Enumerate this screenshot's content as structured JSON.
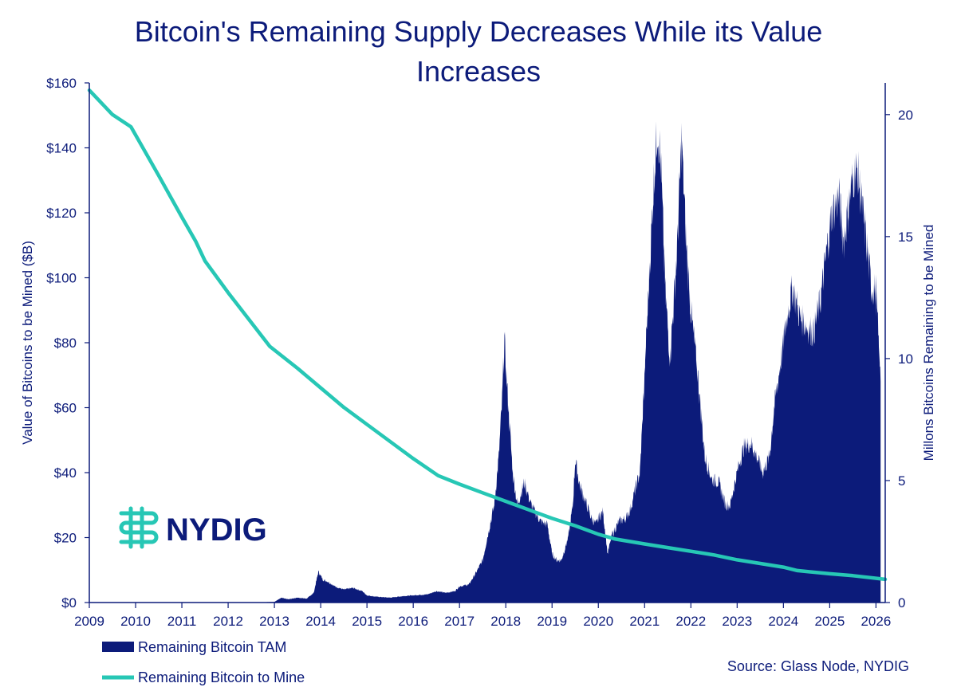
{
  "colors": {
    "navy": "#0c1b7a",
    "teal": "#27c7b5",
    "background": "#ffffff"
  },
  "logo": {
    "text": "NYDIG",
    "icon": "nydig-logo-icon"
  },
  "source": "Source: Glass Node, NYDIG",
  "chart_data": {
    "type": "area",
    "title_line1": "Bitcoin's Remaining Supply Decreases While its Value",
    "title_line2": "Increases",
    "ylabel_left": "Value of Bitcoins to be Mined ($B)",
    "ylabel_right": "Millons Bitcoins Remaining to be Mined",
    "xlim": [
      2009,
      2026.2
    ],
    "ylim_left": [
      0,
      160
    ],
    "ylim_right": [
      0,
      21.3
    ],
    "x_ticks": [
      "2009",
      "2010",
      "2011",
      "2012",
      "2013",
      "2014",
      "2015",
      "2016",
      "2017",
      "2018",
      "2019",
      "2020",
      "2021",
      "2022",
      "2023",
      "2024",
      "2025",
      "2026"
    ],
    "y_ticks_left": [
      "$0",
      "$20",
      "$40",
      "$60",
      "$80",
      "$100",
      "$120",
      "$140",
      "$160"
    ],
    "y_ticks_left_values": [
      0,
      20,
      40,
      60,
      80,
      100,
      120,
      140,
      160
    ],
    "y_ticks_right": [
      "0",
      "5",
      "10",
      "15",
      "20"
    ],
    "y_ticks_right_values": [
      0,
      5,
      10,
      15,
      20
    ],
    "grid": false,
    "legend_position": "bottom-left",
    "series": [
      {
        "name": "Remaining Bitcoin TAM",
        "axis": "left",
        "style": "area",
        "color": "#0c1b7a",
        "points": [
          [
            2009,
            0
          ],
          [
            2010.5,
            0
          ],
          [
            2012.5,
            0
          ],
          [
            2013,
            0.2
          ],
          [
            2013.15,
            1.5
          ],
          [
            2013.3,
            1
          ],
          [
            2013.5,
            1.5
          ],
          [
            2013.7,
            1.2
          ],
          [
            2013.85,
            3
          ],
          [
            2013.95,
            9.5
          ],
          [
            2014.05,
            7
          ],
          [
            2014.15,
            6.5
          ],
          [
            2014.3,
            5
          ],
          [
            2014.5,
            4
          ],
          [
            2014.7,
            4.5
          ],
          [
            2014.9,
            3.5
          ],
          [
            2015.0,
            2.2
          ],
          [
            2015.2,
            1.8
          ],
          [
            2015.5,
            1.5
          ],
          [
            2015.8,
            2
          ],
          [
            2016.0,
            2.2
          ],
          [
            2016.3,
            2.5
          ],
          [
            2016.5,
            3.5
          ],
          [
            2016.7,
            3
          ],
          [
            2016.9,
            3.5
          ],
          [
            2017.0,
            5
          ],
          [
            2017.2,
            5.5
          ],
          [
            2017.35,
            9
          ],
          [
            2017.5,
            13
          ],
          [
            2017.6,
            20
          ],
          [
            2017.75,
            30
          ],
          [
            2017.85,
            45
          ],
          [
            2017.92,
            62
          ],
          [
            2017.97,
            81
          ],
          [
            2018.02,
            68
          ],
          [
            2018.08,
            55
          ],
          [
            2018.15,
            40
          ],
          [
            2018.25,
            30
          ],
          [
            2018.4,
            37
          ],
          [
            2018.55,
            30
          ],
          [
            2018.75,
            25
          ],
          [
            2018.9,
            24
          ],
          [
            2019.0,
            15
          ],
          [
            2019.1,
            13
          ],
          [
            2019.2,
            13
          ],
          [
            2019.35,
            20
          ],
          [
            2019.45,
            30
          ],
          [
            2019.5,
            44
          ],
          [
            2019.6,
            36
          ],
          [
            2019.75,
            30
          ],
          [
            2019.85,
            26
          ],
          [
            2019.95,
            24
          ],
          [
            2020.0,
            26
          ],
          [
            2020.1,
            28
          ],
          [
            2020.2,
            15
          ],
          [
            2020.3,
            21
          ],
          [
            2020.45,
            25
          ],
          [
            2020.6,
            26
          ],
          [
            2020.7,
            29
          ],
          [
            2020.8,
            35
          ],
          [
            2020.9,
            40
          ],
          [
            2021.0,
            70
          ],
          [
            2021.1,
            100
          ],
          [
            2021.2,
            130
          ],
          [
            2021.28,
            147
          ],
          [
            2021.35,
            135
          ],
          [
            2021.45,
            95
          ],
          [
            2021.55,
            75
          ],
          [
            2021.7,
            108
          ],
          [
            2021.8,
            143
          ],
          [
            2021.9,
            110
          ],
          [
            2022.0,
            90
          ],
          [
            2022.15,
            70
          ],
          [
            2022.3,
            45
          ],
          [
            2022.45,
            38
          ],
          [
            2022.6,
            37
          ],
          [
            2022.75,
            30
          ],
          [
            2022.85,
            30
          ],
          [
            2022.95,
            37
          ],
          [
            2023.05,
            43
          ],
          [
            2023.15,
            48
          ],
          [
            2023.3,
            49
          ],
          [
            2023.45,
            44
          ],
          [
            2023.55,
            40
          ],
          [
            2023.7,
            45
          ],
          [
            2023.8,
            60
          ],
          [
            2023.95,
            75
          ],
          [
            2024.1,
            90
          ],
          [
            2024.2,
            97
          ],
          [
            2024.35,
            88
          ],
          [
            2024.5,
            85
          ],
          [
            2024.65,
            83
          ],
          [
            2024.8,
            93
          ],
          [
            2024.95,
            110
          ],
          [
            2025.05,
            120
          ],
          [
            2025.2,
            125
          ],
          [
            2025.3,
            111
          ],
          [
            2025.4,
            121
          ],
          [
            2025.5,
            131
          ],
          [
            2025.6,
            133
          ],
          [
            2025.7,
            122
          ],
          [
            2025.8,
            110
          ],
          [
            2025.9,
            97
          ],
          [
            2026.0,
            96
          ],
          [
            2026.1,
            68
          ]
        ]
      },
      {
        "name": "Remaining Bitcoin to Mine",
        "axis": "right",
        "style": "line",
        "color": "#27c7b5",
        "points": [
          [
            2009.0,
            21.0
          ],
          [
            2009.5,
            20.0
          ],
          [
            2009.9,
            19.5
          ],
          [
            2010.5,
            17.5
          ],
          [
            2011.0,
            15.8
          ],
          [
            2011.3,
            14.8
          ],
          [
            2011.5,
            14.0
          ],
          [
            2012.0,
            12.7
          ],
          [
            2012.9,
            10.5
          ],
          [
            2013.5,
            9.6
          ],
          [
            2014.0,
            8.8
          ],
          [
            2014.5,
            8.0
          ],
          [
            2015.0,
            7.3
          ],
          [
            2015.5,
            6.6
          ],
          [
            2016.0,
            5.9
          ],
          [
            2016.54,
            5.2
          ],
          [
            2017.0,
            4.85
          ],
          [
            2017.5,
            4.5
          ],
          [
            2018.0,
            4.15
          ],
          [
            2018.5,
            3.8
          ],
          [
            2019.0,
            3.45
          ],
          [
            2019.5,
            3.15
          ],
          [
            2020.0,
            2.8
          ],
          [
            2020.37,
            2.6
          ],
          [
            2021.0,
            2.4
          ],
          [
            2021.5,
            2.25
          ],
          [
            2022.0,
            2.1
          ],
          [
            2022.5,
            1.95
          ],
          [
            2023.0,
            1.75
          ],
          [
            2023.5,
            1.6
          ],
          [
            2024.0,
            1.45
          ],
          [
            2024.3,
            1.31
          ],
          [
            2025.0,
            1.18
          ],
          [
            2025.5,
            1.1
          ],
          [
            2026.2,
            0.95
          ]
        ]
      }
    ]
  }
}
